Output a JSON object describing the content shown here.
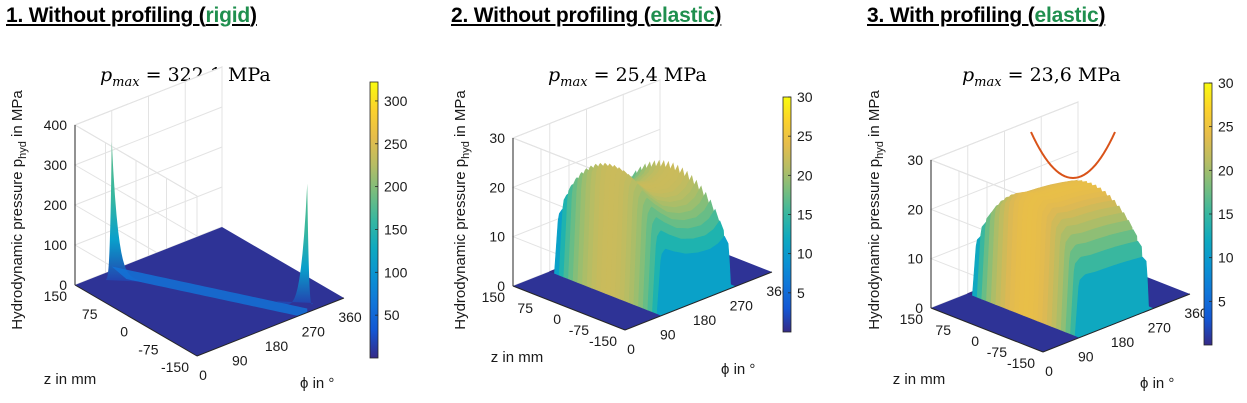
{
  "chart_data": [
    {
      "type": "surface",
      "heading": {
        "prefix": "1. Without profiling (",
        "mode": "rigid",
        "suffix": ")"
      },
      "annotation": {
        "symbol": "p",
        "subscript": "max",
        "value": " = 322,1 MPa"
      },
      "zlabel": {
        "main": "Hydrodynamic pressure p",
        "sub": "hyd",
        "tail": " in MPa"
      },
      "xlabel": "ϕ in °",
      "ylabel": "z in mm",
      "x_ticks": [
        "0",
        "90",
        "180",
        "270",
        "360"
      ],
      "y_ticks": [
        "150",
        "75",
        "0",
        "-75",
        "-150"
      ],
      "z_ticks": [
        "0",
        "100",
        "200",
        "300",
        "400"
      ],
      "colorbar_ticks": [
        "50",
        "100",
        "150",
        "200",
        "250",
        "300"
      ],
      "colorbar_range": [
        0,
        322.1
      ],
      "xlim": [
        0,
        360
      ],
      "ylim": [
        -150,
        150
      ],
      "zlim": [
        0,
        400
      ],
      "p_max": 322.1,
      "profile": {
        "phi": [
          0,
          40,
          80,
          120,
          150,
          180,
          210,
          240,
          270,
          300,
          330,
          360
        ],
        "p": [
          0,
          0,
          0,
          0,
          0,
          0,
          0,
          0,
          0,
          0,
          0,
          0
        ]
      },
      "peaks": [
        {
          "phi": 90,
          "z": 150,
          "p": 322.1
        },
        {
          "phi": 270,
          "z": -150,
          "p": 322.1
        }
      ]
    },
    {
      "type": "surface",
      "heading": {
        "prefix": "2. Without profiling (",
        "mode": "elastic",
        "suffix": ")"
      },
      "annotation": {
        "symbol": "p",
        "subscript": "max",
        "value": " = 25,4 MPa"
      },
      "zlabel": {
        "main": "Hydrodynamic pressure p",
        "sub": "hyd",
        "tail": " in MPa"
      },
      "xlabel": "ϕ in °",
      "ylabel": "z in mm",
      "x_ticks": [
        "0",
        "90",
        "180",
        "270",
        "360"
      ],
      "y_ticks": [
        "150",
        "75",
        "0",
        "-75",
        "-150"
      ],
      "z_ticks": [
        "0",
        "10",
        "20",
        "30"
      ],
      "colorbar_ticks": [
        "5",
        "10",
        "15",
        "20",
        "25",
        "30"
      ],
      "colorbar_range": [
        0,
        30
      ],
      "xlim": [
        0,
        360
      ],
      "ylim": [
        -150,
        150
      ],
      "zlim": [
        0,
        30
      ],
      "p_max": 25.4,
      "profile": {
        "phi": [
          90,
          100,
          110,
          130,
          160,
          190,
          220,
          240,
          255,
          265,
          270
        ],
        "p": [
          0,
          23.5,
          25.4,
          23,
          20,
          18.5,
          18,
          19,
          21,
          17,
          0
        ]
      }
    },
    {
      "type": "surface",
      "heading": {
        "prefix": "3. With profiling (",
        "mode": "elastic",
        "suffix": ")"
      },
      "annotation": {
        "symbol": "p",
        "subscript": "max",
        "value": " = 23,6 MPa"
      },
      "zlabel": {
        "main": "Hydrodynamic pressure p",
        "sub": "hyd",
        "tail": " in MPa"
      },
      "xlabel": "ϕ in °",
      "ylabel": "z in mm",
      "x_ticks": [
        "0",
        "90",
        "180",
        "270",
        "360"
      ],
      "y_ticks": [
        "150",
        "75",
        "0",
        "-75",
        "-150"
      ],
      "z_ticks": [
        "0",
        "10",
        "20",
        "30"
      ],
      "colorbar_ticks": [
        "5",
        "10",
        "15",
        "20",
        "25",
        "30"
      ],
      "colorbar_range": [
        0,
        30
      ],
      "xlim": [
        0,
        360
      ],
      "ylim": [
        -150,
        150
      ],
      "zlim": [
        0,
        30
      ],
      "p_max": 23.6,
      "profile": {
        "phi": [
          90,
          100,
          115,
          140,
          170,
          200,
          230,
          255,
          265,
          270
        ],
        "p": [
          0,
          22,
          23.6,
          23,
          22.8,
          22.5,
          22,
          21.5,
          19,
          0
        ]
      },
      "profile_curve": {
        "color": "#d95319",
        "shape": "parabola"
      }
    }
  ],
  "colors": {
    "mode": "#1f8f4e",
    "axis": "#262626",
    "grid": "#d9d9d9",
    "curve": "#d95319"
  }
}
